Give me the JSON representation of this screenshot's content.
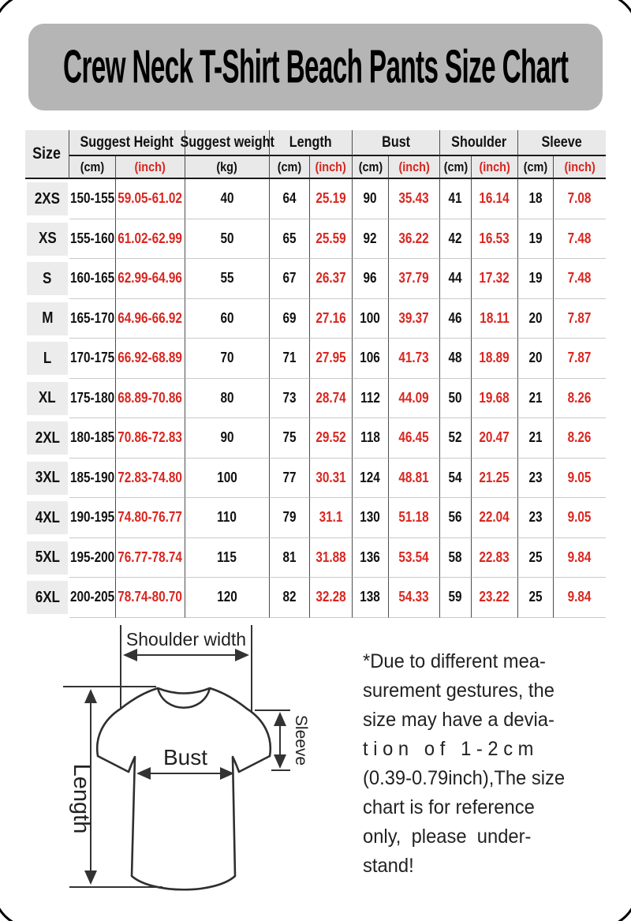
{
  "title": "Crew Neck T-Shirt Beach Pants Size Chart",
  "colors": {
    "accent_red": "#d9261f",
    "title_bg": "#b5b5b5",
    "header_bg": "#e9e9e9",
    "size_cell_bg": "#ececec"
  },
  "table": {
    "header": {
      "size_label": "Size",
      "groups": [
        {
          "label": "Suggest Height",
          "subs": [
            {
              "label": "(cm)",
              "red": false
            },
            {
              "label": "(inch)",
              "red": true
            }
          ]
        },
        {
          "label": "Suggest weight",
          "subs": [
            {
              "label": "(kg)",
              "red": false
            }
          ]
        },
        {
          "label": "Length",
          "subs": [
            {
              "label": "(cm)",
              "red": false
            },
            {
              "label": "(inch)",
              "red": true
            }
          ]
        },
        {
          "label": "Bust",
          "subs": [
            {
              "label": "(cm)",
              "red": false
            },
            {
              "label": "(inch)",
              "red": true
            }
          ]
        },
        {
          "label": "Shoulder",
          "subs": [
            {
              "label": "(cm)",
              "red": false
            },
            {
              "label": "(inch)",
              "red": true
            }
          ]
        },
        {
          "label": "Sleeve",
          "subs": [
            {
              "label": "(cm)",
              "red": false
            },
            {
              "label": "(inch)",
              "red": true
            }
          ]
        }
      ]
    },
    "rows": [
      {
        "size": "2XS",
        "height_cm": "150-155",
        "height_inch": "59.05-61.02",
        "weight_kg": "40",
        "length_cm": "64",
        "length_inch": "25.19",
        "bust_cm": "90",
        "bust_inch": "35.43",
        "shoulder_cm": "41",
        "shoulder_inch": "16.14",
        "sleeve_cm": "18",
        "sleeve_inch": "7.08"
      },
      {
        "size": "XS",
        "height_cm": "155-160",
        "height_inch": "61.02-62.99",
        "weight_kg": "50",
        "length_cm": "65",
        "length_inch": "25.59",
        "bust_cm": "92",
        "bust_inch": "36.22",
        "shoulder_cm": "42",
        "shoulder_inch": "16.53",
        "sleeve_cm": "19",
        "sleeve_inch": "7.48"
      },
      {
        "size": "S",
        "height_cm": "160-165",
        "height_inch": "62.99-64.96",
        "weight_kg": "55",
        "length_cm": "67",
        "length_inch": "26.37",
        "bust_cm": "96",
        "bust_inch": "37.79",
        "shoulder_cm": "44",
        "shoulder_inch": "17.32",
        "sleeve_cm": "19",
        "sleeve_inch": "7.48"
      },
      {
        "size": "M",
        "height_cm": "165-170",
        "height_inch": "64.96-66.92",
        "weight_kg": "60",
        "length_cm": "69",
        "length_inch": "27.16",
        "bust_cm": "100",
        "bust_inch": "39.37",
        "shoulder_cm": "46",
        "shoulder_inch": "18.11",
        "sleeve_cm": "20",
        "sleeve_inch": "7.87"
      },
      {
        "size": "L",
        "height_cm": "170-175",
        "height_inch": "66.92-68.89",
        "weight_kg": "70",
        "length_cm": "71",
        "length_inch": "27.95",
        "bust_cm": "106",
        "bust_inch": "41.73",
        "shoulder_cm": "48",
        "shoulder_inch": "18.89",
        "sleeve_cm": "20",
        "sleeve_inch": "7.87"
      },
      {
        "size": "XL",
        "height_cm": "175-180",
        "height_inch": "68.89-70.86",
        "weight_kg": "80",
        "length_cm": "73",
        "length_inch": "28.74",
        "bust_cm": "112",
        "bust_inch": "44.09",
        "shoulder_cm": "50",
        "shoulder_inch": "19.68",
        "sleeve_cm": "21",
        "sleeve_inch": "8.26"
      },
      {
        "size": "2XL",
        "height_cm": "180-185",
        "height_inch": "70.86-72.83",
        "weight_kg": "90",
        "length_cm": "75",
        "length_inch": "29.52",
        "bust_cm": "118",
        "bust_inch": "46.45",
        "shoulder_cm": "52",
        "shoulder_inch": "20.47",
        "sleeve_cm": "21",
        "sleeve_inch": "8.26"
      },
      {
        "size": "3XL",
        "height_cm": "185-190",
        "height_inch": "72.83-74.80",
        "weight_kg": "100",
        "length_cm": "77",
        "length_inch": "30.31",
        "bust_cm": "124",
        "bust_inch": "48.81",
        "shoulder_cm": "54",
        "shoulder_inch": "21.25",
        "sleeve_cm": "23",
        "sleeve_inch": "9.05"
      },
      {
        "size": "4XL",
        "height_cm": "190-195",
        "height_inch": "74.80-76.77",
        "weight_kg": "110",
        "length_cm": "79",
        "length_inch": "31.1",
        "bust_cm": "130",
        "bust_inch": "51.18",
        "shoulder_cm": "56",
        "shoulder_inch": "22.04",
        "sleeve_cm": "23",
        "sleeve_inch": "9.05"
      },
      {
        "size": "5XL",
        "height_cm": "195-200",
        "height_inch": "76.77-78.74",
        "weight_kg": "115",
        "length_cm": "81",
        "length_inch": "31.88",
        "bust_cm": "136",
        "bust_inch": "53.54",
        "shoulder_cm": "58",
        "shoulder_inch": "22.83",
        "sleeve_cm": "25",
        "sleeve_inch": "9.84"
      },
      {
        "size": "6XL",
        "height_cm": "200-205",
        "height_inch": "78.74-80.70",
        "weight_kg": "120",
        "length_cm": "82",
        "length_inch": "32.28",
        "bust_cm": "138",
        "bust_inch": "54.33",
        "shoulder_cm": "59",
        "shoulder_inch": "23.22",
        "sleeve_cm": "25",
        "sleeve_inch": "9.84"
      }
    ]
  },
  "diagram": {
    "shoulder_label": "Shoulder width",
    "length_label": "Length",
    "bust_label": "Bust",
    "sleeve_label": "Sleeve"
  },
  "note_lines": [
    "*Due to different mea-",
    "surement gestures, the",
    "size may have a devia-",
    "t i o n   o f   1 - 2 c m",
    "(0.39-0.79inch),The size",
    "chart is for reference",
    "only,  please  under-",
    "stand!"
  ]
}
